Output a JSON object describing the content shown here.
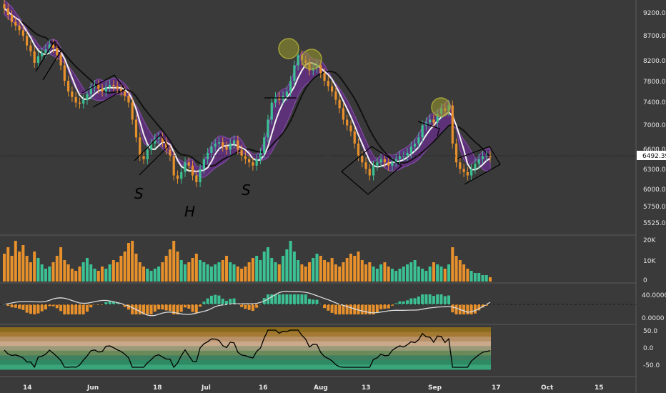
{
  "colors": {
    "background": "#3a3a3a",
    "up": "#3cc194",
    "down": "#e8912c",
    "ribbon": "#6a2f8e",
    "axis_text": "#e6e6e6",
    "price_tag_bg": "#ffffff",
    "price_tag_text": "#111111"
  },
  "chart_data": {
    "type": "candlestick",
    "x_ticks": [
      "14",
      "Jun",
      "18",
      "Jul",
      "16",
      "Aug",
      "13",
      "Sep",
      "17",
      "Oct",
      "15"
    ],
    "price_panel": {
      "y_ticks": [
        "9200.00",
        "8700.00",
        "8200.00",
        "7800.00",
        "7400.00",
        "7000.00",
        "6600.00",
        "6300.00",
        "6000.00",
        "5750.00",
        "5525.00"
      ],
      "last_price": "6492.39",
      "scale": "log",
      "annotations": [
        "S",
        "H",
        "S"
      ]
    },
    "volume_panel": {
      "y_ticks": [
        "20K",
        "10K",
        "0"
      ]
    },
    "oscillator_panel": {
      "y_ticks": [
        "40.0000",
        "0.0000"
      ]
    },
    "band_panel": {
      "y_ticks": [
        "50.0",
        "0.0",
        "-50.0"
      ]
    },
    "closes": [
      9300,
      9150,
      9000,
      8920,
      8820,
      8700,
      8500,
      8380,
      8150,
      8280,
      8350,
      8420,
      8520,
      8450,
      8300,
      8100,
      7800,
      7600,
      7500,
      7400,
      7380,
      7450,
      7550,
      7680,
      7720,
      7650,
      7600,
      7680,
      7720,
      7700,
      7650,
      7600,
      7520,
      7400,
      7100,
      6800,
      6500,
      6450,
      6600,
      6700,
      6780,
      6800,
      6720,
      6600,
      6500,
      6200,
      6150,
      6250,
      6400,
      6350,
      6200,
      6100,
      6300,
      6450,
      6550,
      6650,
      6700,
      6720,
      6650,
      6600,
      6700,
      6750,
      6600,
      6500,
      6450,
      6400,
      6350,
      6450,
      6550,
      6800,
      7100,
      7400,
      7500,
      7450,
      7520,
      7600,
      7800,
      8100,
      8300,
      8200,
      8150,
      8000,
      8050,
      8100,
      7950,
      7800,
      7700,
      7600,
      7450,
      7300,
      7100,
      7000,
      6900,
      6700,
      6500,
      6400,
      6300,
      6200,
      6350,
      6400,
      6450,
      6400,
      6350,
      6400,
      6450,
      6500,
      6500,
      6550,
      6650,
      6700,
      6800,
      7000,
      7050,
      7100,
      7050,
      7200,
      7300,
      7250,
      7350,
      6700,
      6400,
      6300,
      6250,
      6200,
      6300,
      6380,
      6450,
      6500,
      6500,
      6480
    ],
    "volumes": [
      13000,
      16000,
      12000,
      19000,
      14000,
      17000,
      12000,
      9000,
      14000,
      11000,
      8000,
      6000,
      7000,
      9000,
      12000,
      16000,
      10000,
      8000,
      6000,
      5000,
      7000,
      9000,
      11000,
      8000,
      6000,
      5000,
      7000,
      6000,
      8000,
      10000,
      9000,
      12000,
      14000,
      18000,
      19000,
      13000,
      9000,
      7000,
      6000,
      5000,
      6000,
      7000,
      9000,
      12000,
      15000,
      19000,
      14000,
      10000,
      8000,
      9000,
      11000,
      13000,
      10000,
      9000,
      8000,
      7000,
      8000,
      9000,
      10000,
      12000,
      9000,
      8000,
      7000,
      6000,
      7000,
      9000,
      11000,
      12000,
      10000,
      14000,
      16000,
      11000,
      9000,
      8000,
      12000,
      15000,
      19000,
      14000,
      10000,
      8000,
      7000,
      9000,
      11000,
      13000,
      12000,
      10000,
      9000,
      11000,
      8000,
      7000,
      9000,
      11000,
      13000,
      12000,
      14000,
      10000,
      8000,
      9000,
      7000,
      6000,
      8000,
      9000,
      7000,
      6000,
      5000,
      6000,
      7000,
      8000,
      9000,
      10000,
      7000,
      6000,
      5000,
      7000,
      9000,
      8000,
      7000,
      6000,
      8000,
      16000,
      12000,
      10000,
      8000,
      6000,
      5000,
      4000,
      4000,
      3000,
      3000,
      2000
    ]
  }
}
